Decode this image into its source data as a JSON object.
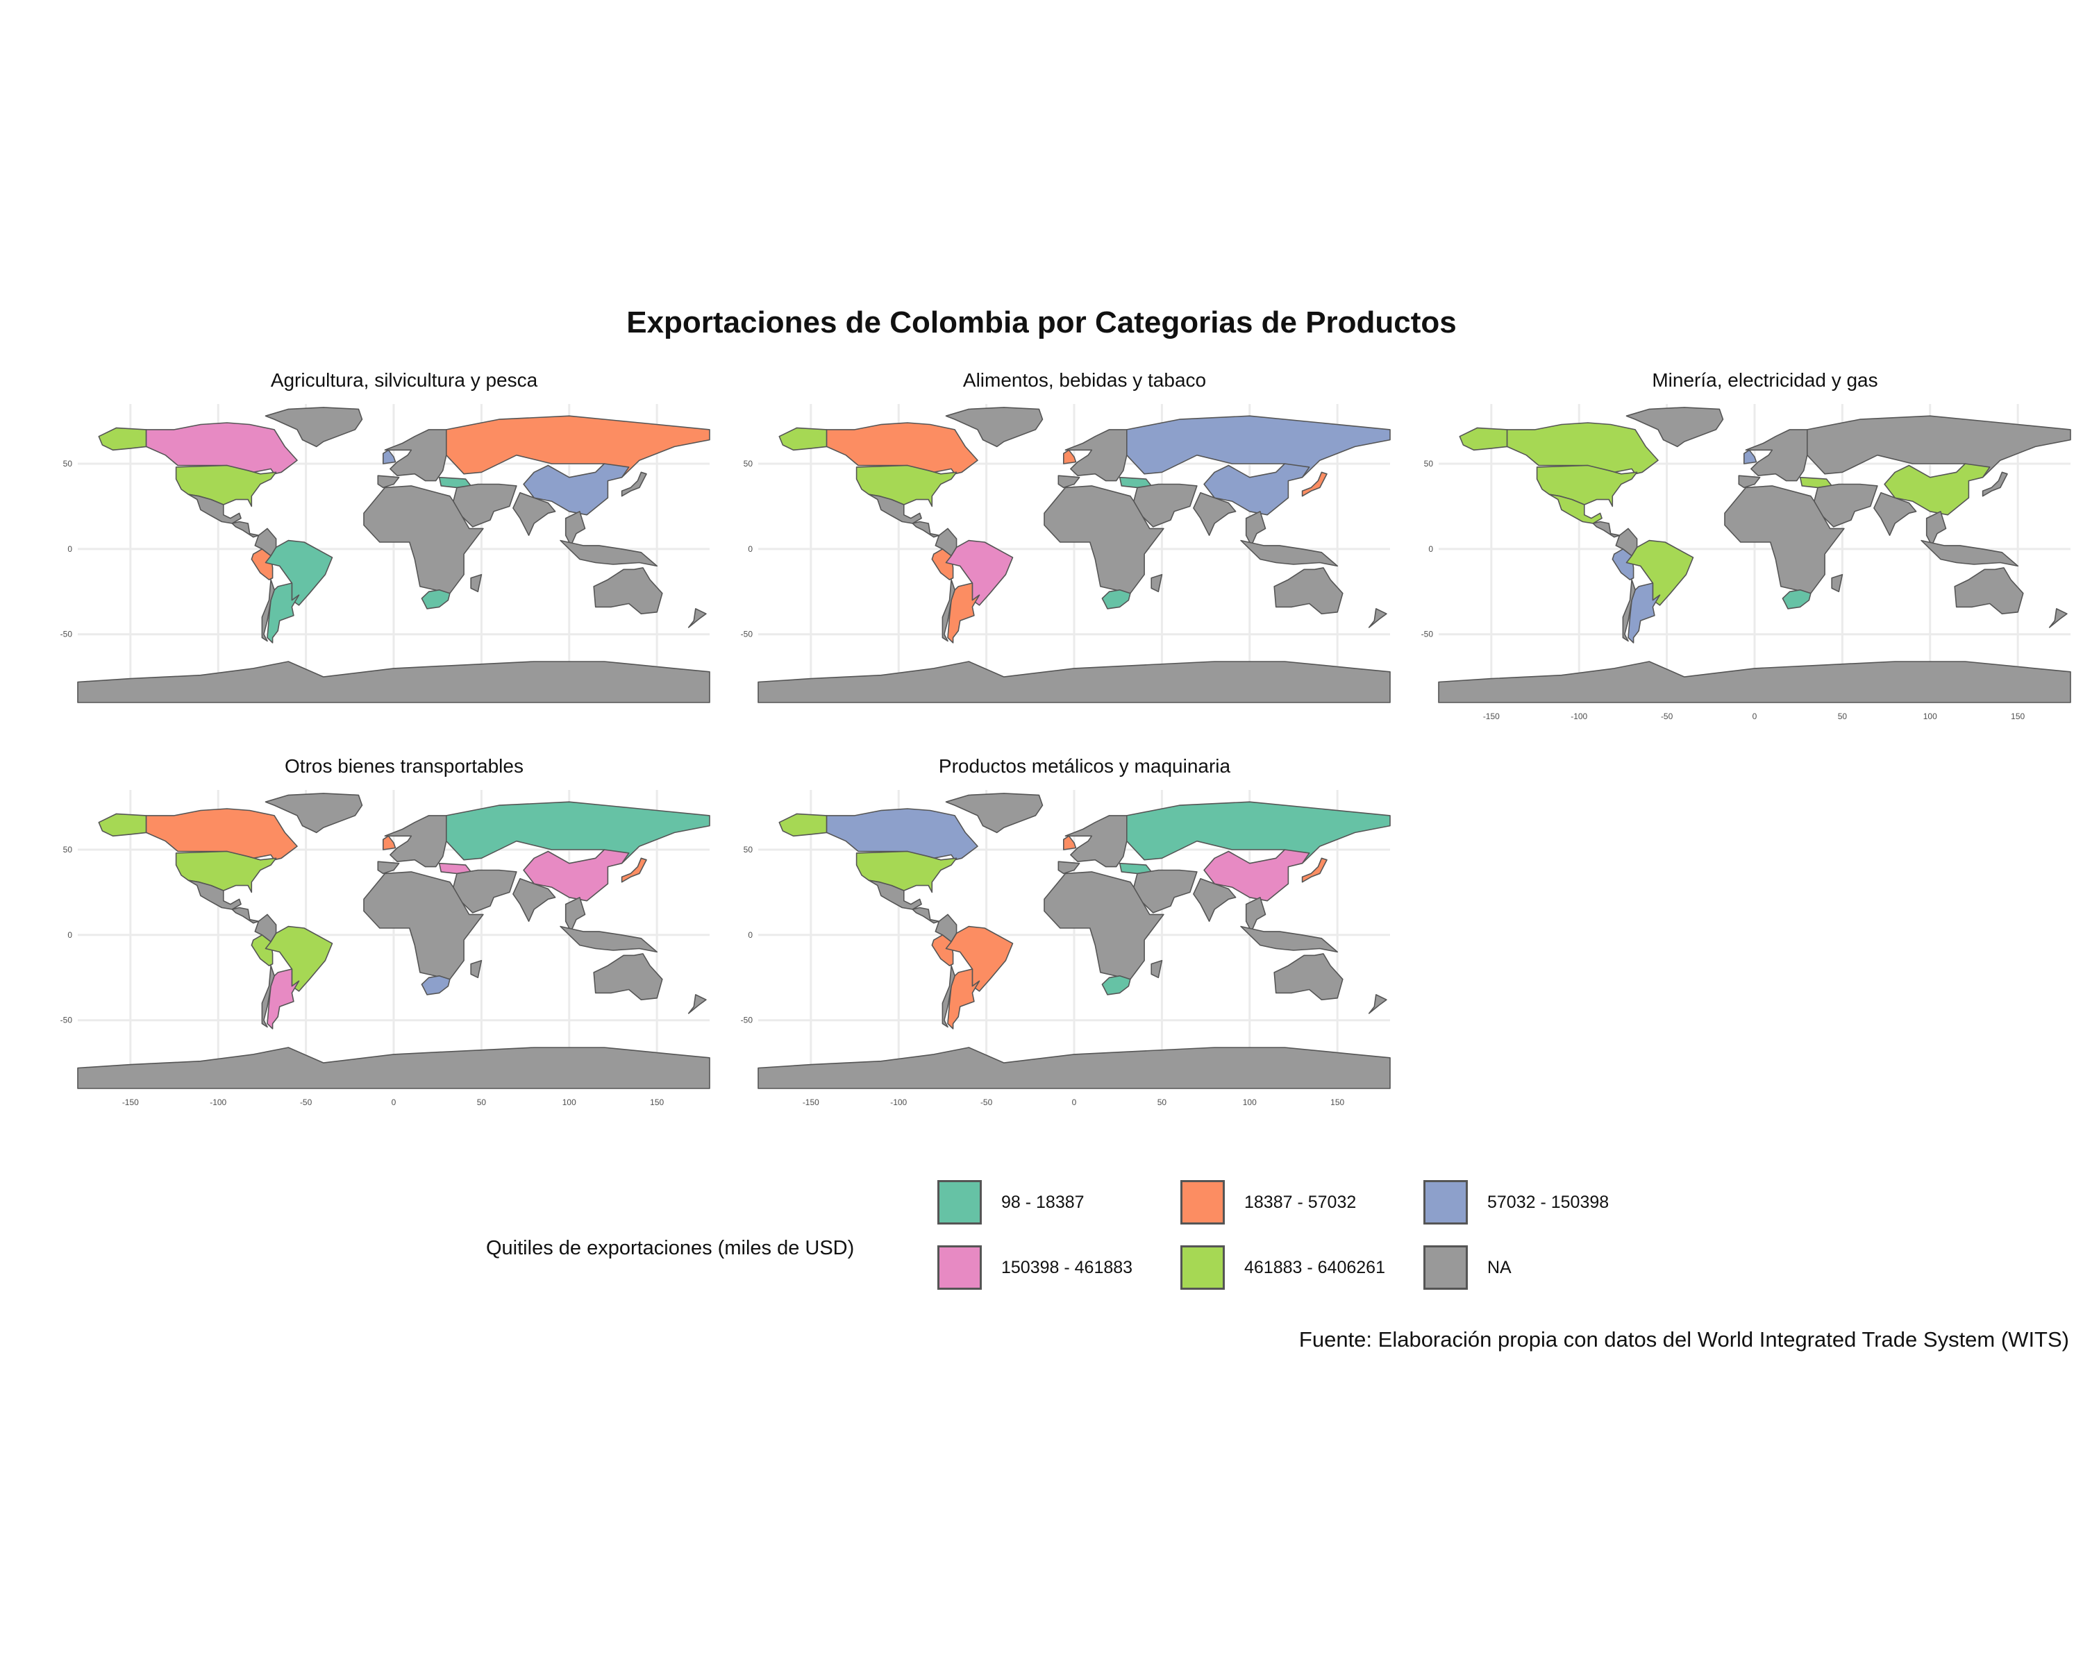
{
  "title": "Exportaciones de Colombia por Categorias de Productos",
  "caption": "Fuente: Elaboración propia con datos del World Integrated Trade System (WITS)",
  "legend": {
    "title": "Quitiles de exportaciones (miles de USD)",
    "items": [
      {
        "key": "q1",
        "label": "98 - 18387",
        "color": "#66C2A5"
      },
      {
        "key": "q2",
        "label": "18387 - 57032",
        "color": "#FC8D62"
      },
      {
        "key": "q3",
        "label": "57032 - 150398",
        "color": "#8DA0CB"
      },
      {
        "key": "q4",
        "label": "150398 - 461883",
        "color": "#E78AC3"
      },
      {
        "key": "q5",
        "label": "461883 - 6406261",
        "color": "#A6D854"
      },
      {
        "key": "na",
        "label": "NA",
        "color": "#999999"
      }
    ]
  },
  "axes": {
    "x_ticks": [
      -150,
      -100,
      -50,
      0,
      50,
      100,
      150
    ],
    "y_ticks": [
      50,
      0,
      -50
    ],
    "x_range": [
      -180,
      180
    ],
    "y_range": [
      -90,
      85
    ]
  },
  "chart_data": {
    "type": "choropleth",
    "facets": [
      {
        "name": "Agricultura, silvicultura y pesca",
        "regions": {
          "canada": "q4",
          "greenland": "na",
          "alaska": "q5",
          "usa": "q5",
          "mexico": "na",
          "central_america": "na",
          "colombia": "na",
          "peru": "q2",
          "brazil": "q1",
          "argentina": "q1",
          "chile": "na",
          "europe": "na",
          "uk": "q3",
          "spain": "na",
          "turkey": "q1",
          "russia": "q2",
          "middle_east": "na",
          "africa": "na",
          "south_africa": "q1",
          "china": "q3",
          "japan": "na",
          "india": "na",
          "se_asia": "na",
          "australia": "na",
          "antarctica": "na"
        }
      },
      {
        "name": "Alimentos, bebidas y tabaco",
        "regions": {
          "canada": "q2",
          "greenland": "na",
          "alaska": "q5",
          "usa": "q5",
          "mexico": "na",
          "central_america": "na",
          "colombia": "na",
          "peru": "q2",
          "brazil": "q4",
          "argentina": "q2",
          "chile": "na",
          "europe": "na",
          "uk": "q2",
          "spain": "na",
          "turkey": "q1",
          "russia": "q3",
          "middle_east": "na",
          "africa": "na",
          "south_africa": "q1",
          "china": "q3",
          "japan": "q2",
          "india": "na",
          "se_asia": "na",
          "australia": "na",
          "antarctica": "na"
        }
      },
      {
        "name": "Minería, electricidad y gas",
        "regions": {
          "canada": "q5",
          "greenland": "na",
          "alaska": "q5",
          "usa": "q5",
          "mexico": "q5",
          "central_america": "na",
          "colombia": "na",
          "peru": "q3",
          "brazil": "q5",
          "argentina": "q3",
          "chile": "na",
          "europe": "na",
          "uk": "q3",
          "spain": "na",
          "turkey": "q5",
          "russia": "na",
          "middle_east": "na",
          "africa": "na",
          "south_africa": "q1",
          "china": "q5",
          "japan": "na",
          "india": "na",
          "se_asia": "na",
          "australia": "na",
          "antarctica": "na"
        }
      },
      {
        "name": "Otros bienes transportables",
        "regions": {
          "canada": "q2",
          "greenland": "na",
          "alaska": "q5",
          "usa": "q5",
          "mexico": "na",
          "central_america": "na",
          "colombia": "na",
          "peru": "q5",
          "brazil": "q5",
          "argentina": "q4",
          "chile": "na",
          "europe": "na",
          "uk": "q2",
          "spain": "na",
          "turkey": "q4",
          "russia": "q1",
          "middle_east": "na",
          "africa": "na",
          "south_africa": "q3",
          "china": "q4",
          "japan": "q2",
          "india": "na",
          "se_asia": "na",
          "australia": "na",
          "antarctica": "na"
        }
      },
      {
        "name": "Productos metálicos y maquinaria",
        "regions": {
          "canada": "q3",
          "greenland": "na",
          "alaska": "q5",
          "usa": "q5",
          "mexico": "na",
          "central_america": "na",
          "colombia": "na",
          "peru": "q2",
          "brazil": "q2",
          "argentina": "q2",
          "chile": "na",
          "europe": "na",
          "uk": "q2",
          "spain": "na",
          "turkey": "q1",
          "russia": "q1",
          "middle_east": "na",
          "africa": "na",
          "south_africa": "q1",
          "china": "q4",
          "japan": "q2",
          "india": "na",
          "se_asia": "na",
          "australia": "na",
          "antarctica": "na"
        }
      }
    ]
  }
}
